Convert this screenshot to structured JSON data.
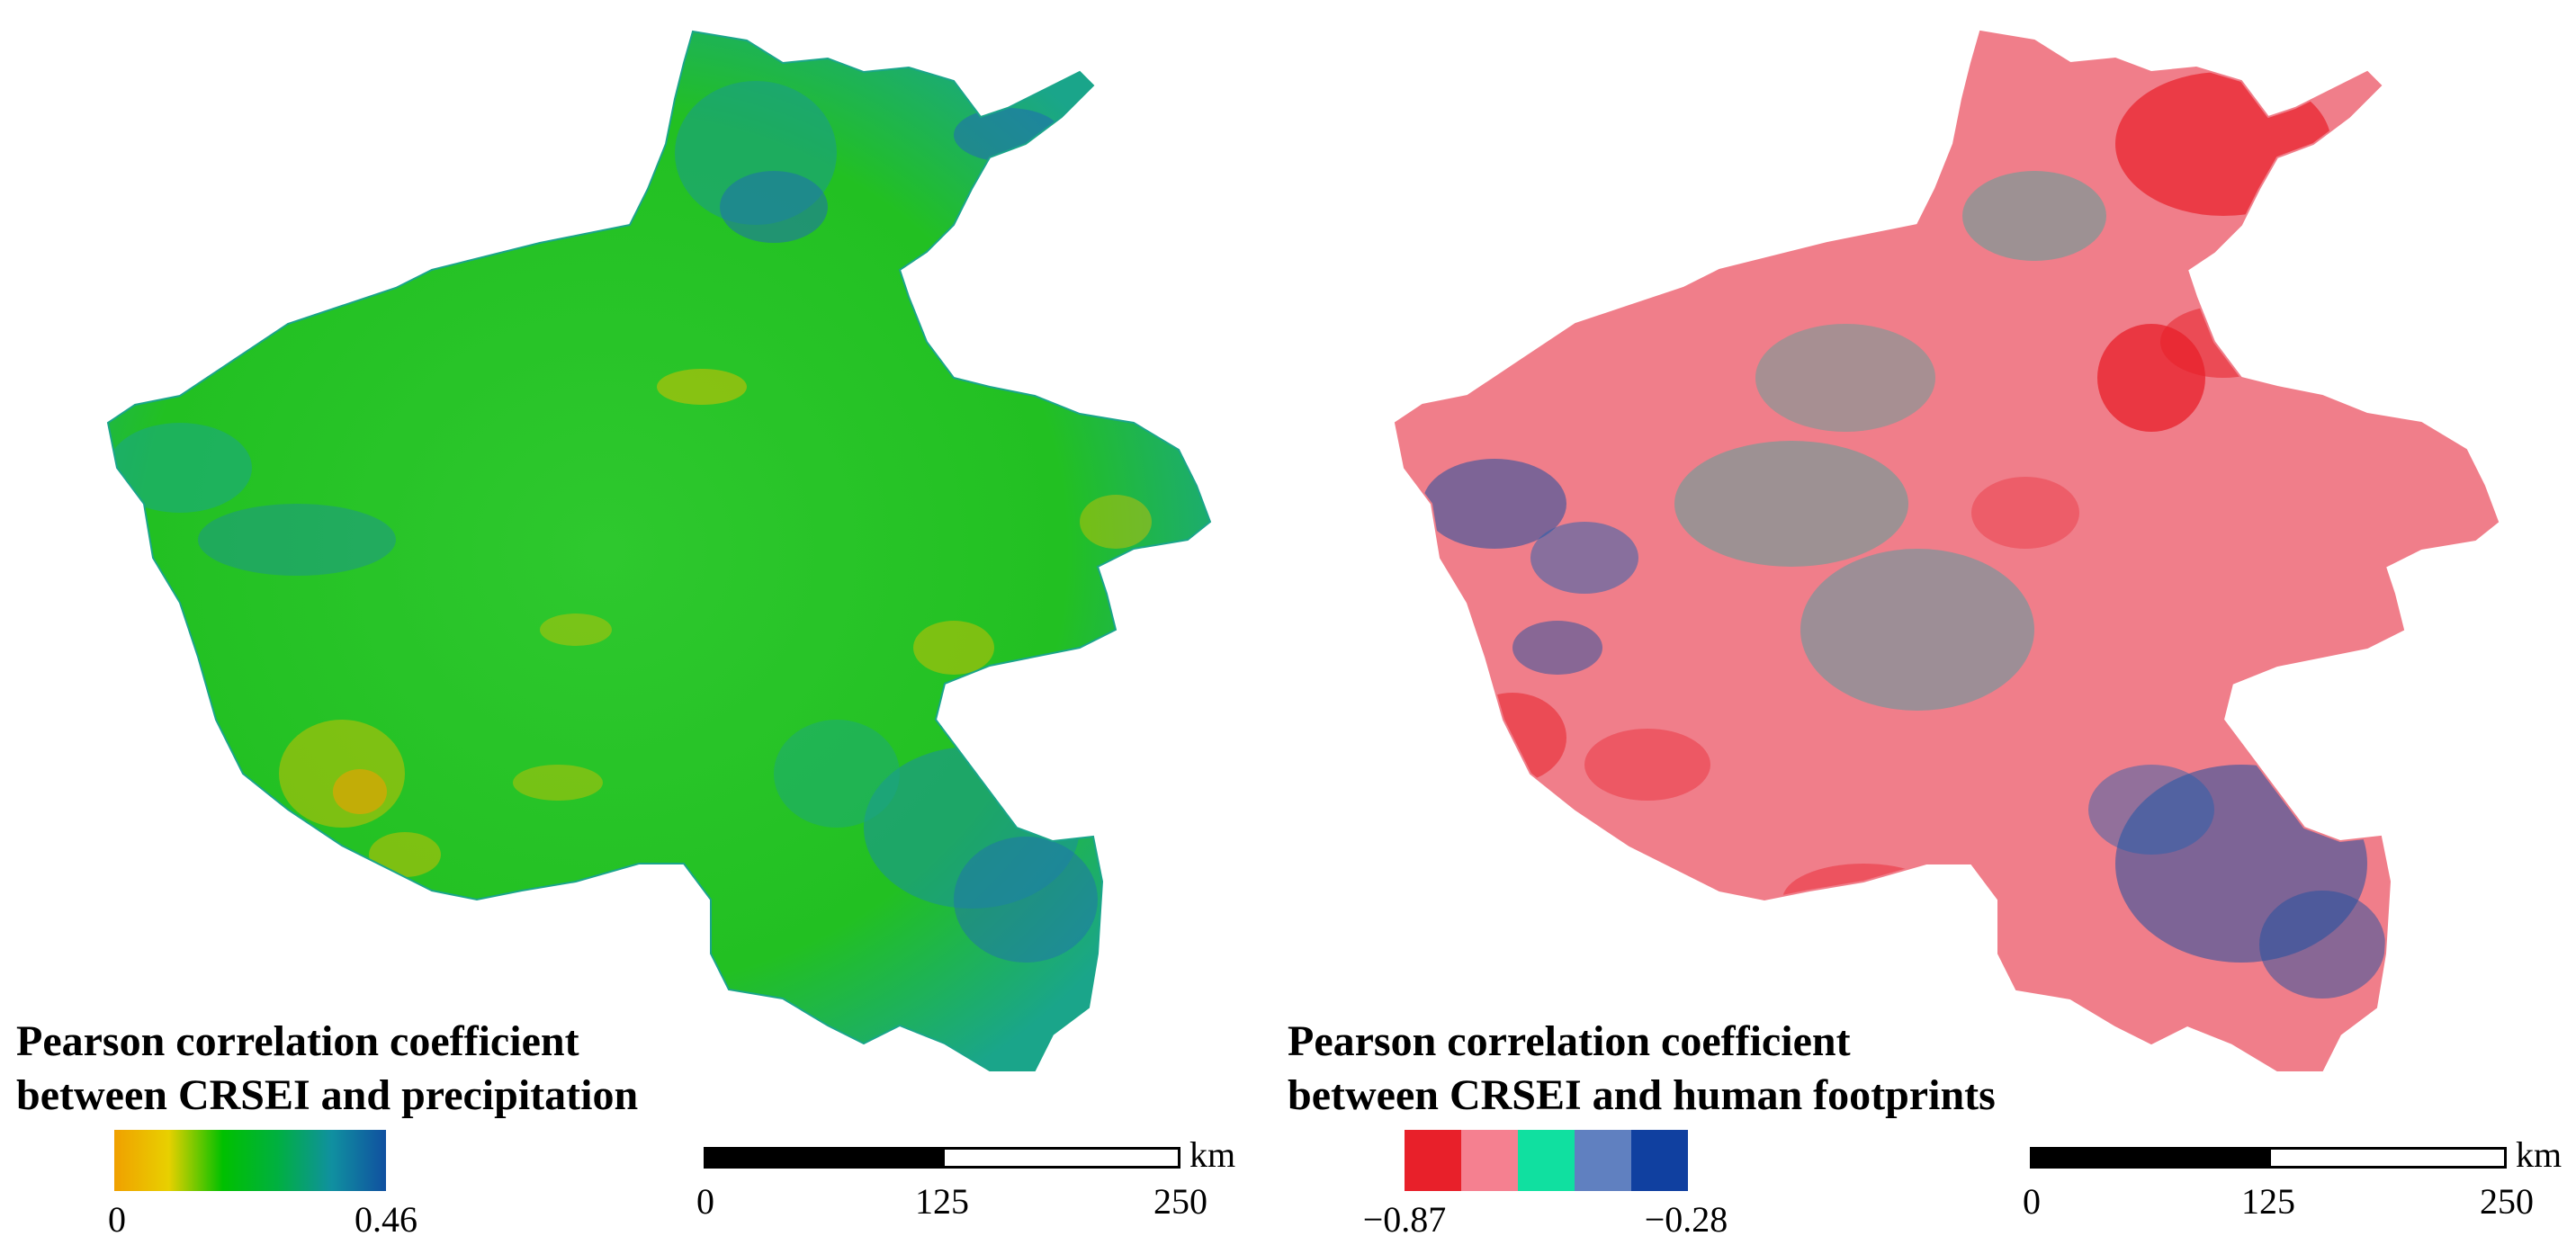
{
  "panels": [
    {
      "id": "precipitation",
      "legend": {
        "title_line1": "Pearson correlation coefficient",
        "title_line2": "between CRSEI and precipitation",
        "min_label": "0",
        "max_label": "0.46",
        "type": "continuous",
        "gradient_colors": [
          "#f0a000",
          "#e8d000",
          "#00c000",
          "#00b040",
          "#1090a0",
          "#1050a0"
        ]
      },
      "scale_bar": {
        "tick_0": "0",
        "tick_mid": "125",
        "tick_end": "250",
        "unit": "km"
      },
      "map_colors": {
        "dominant": "#22c022",
        "high": "#1f6fb0",
        "mid": "#1aa58a",
        "low": "#d6c000",
        "lowest": "#f0a000"
      }
    },
    {
      "id": "human_footprints",
      "legend": {
        "title_line1": "Pearson correlation coefficient",
        "title_line2": "between CRSEI and human footprints",
        "min_label": "−0.87",
        "max_label": "−0.28",
        "type": "classified",
        "class_colors": [
          "#e8202a",
          "#f58090",
          "#10e0a0",
          "#6080c0",
          "#1040a0"
        ]
      },
      "scale_bar": {
        "tick_0": "0",
        "tick_mid": "125",
        "tick_end": "250",
        "unit": "km"
      },
      "map_colors": {
        "dominant": "#f07e8a",
        "strong": "#e8202a",
        "mid": "#20b0a0",
        "weak": "#1f4fa0"
      }
    }
  ]
}
